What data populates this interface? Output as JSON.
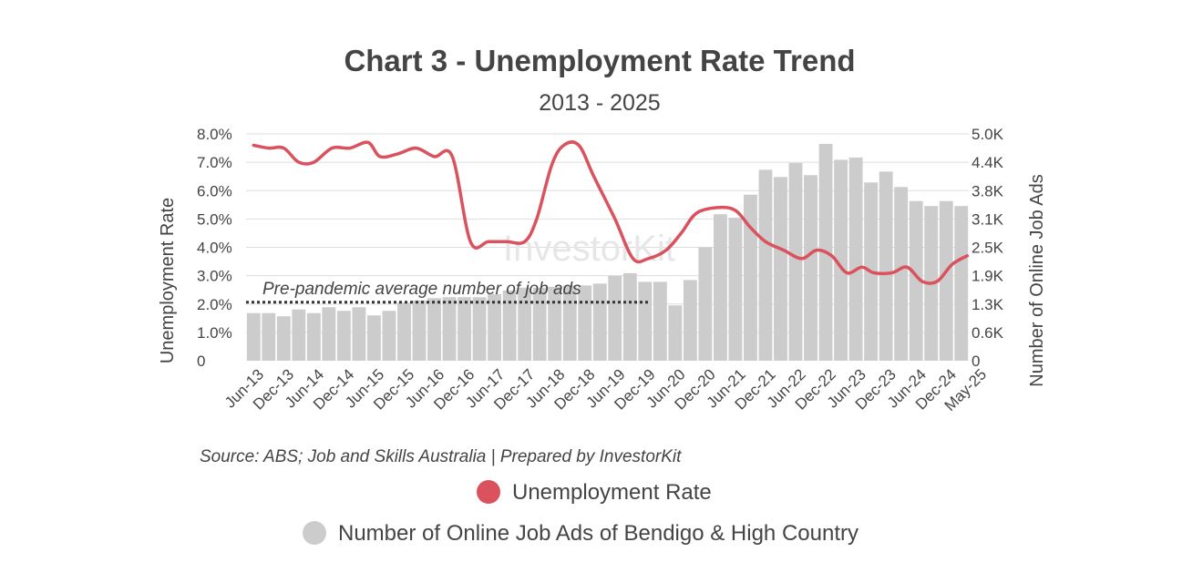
{
  "chart_data": {
    "type": "bar+line",
    "title": "Chart 3 - Unemployment Rate Trend",
    "subtitle": "2013 - 2025",
    "ylabel_left": "Unemployment Rate",
    "ylabel_right": "Number of Online Job Ads",
    "left_ticks": [
      "0",
      "1.0%",
      "2.0%",
      "3.0%",
      "4.0%",
      "5.0%",
      "6.0%",
      "7.0%",
      "8.0%"
    ],
    "right_ticks": [
      "0",
      "0.6K",
      "1.3K",
      "1.9K",
      "2.5K",
      "3.1K",
      "3.8K",
      "4.4K",
      "5.0K"
    ],
    "ylim_left": [
      0,
      8
    ],
    "ylim_right": [
      0,
      5000
    ],
    "x_tick_labels": [
      "Jun-13",
      "Dec-13",
      "Jun-14",
      "Dec-14",
      "Jun-15",
      "Dec-15",
      "Jun-16",
      "Dec-16",
      "Jun-17",
      "Dec-17",
      "Jun-18",
      "Dec-18",
      "Jun-19",
      "Dec-19",
      "Jun-20",
      "Dec-20",
      "Jun-21",
      "Dec-21",
      "Jun-22",
      "Dec-22",
      "Jun-23",
      "Dec-23",
      "Jun-24",
      "Dec-24",
      "May-25"
    ],
    "series": [
      {
        "name": "Number of Online Job Ads of Bendigo & High Country",
        "kind": "bar",
        "axis": "right",
        "color": "#cccccc",
        "values": [
          1050,
          1050,
          980,
          1130,
          1050,
          1180,
          1100,
          1180,
          1000,
          1100,
          1280,
          1330,
          1380,
          1400,
          1400,
          1400,
          1470,
          1550,
          1610,
          1610,
          1630,
          1660,
          1660,
          1700,
          1870,
          1930,
          1740,
          1740,
          1220,
          1780,
          2500,
          3230,
          3150,
          3660,
          4210,
          4050,
          4360,
          4090,
          4780,
          4430,
          4480,
          3930,
          4170,
          3830,
          3520,
          3410,
          3520,
          3410
        ]
      },
      {
        "name": "Unemployment Rate",
        "kind": "line",
        "axis": "left",
        "color": "#d9525e",
        "points": [
          [
            0,
            7.6
          ],
          [
            0.5,
            7.5
          ],
          [
            1,
            7.5
          ],
          [
            1.5,
            7.0
          ],
          [
            2,
            7.0
          ],
          [
            2.6,
            7.5
          ],
          [
            3.2,
            7.5
          ],
          [
            3.8,
            7.7
          ],
          [
            4.2,
            7.2
          ],
          [
            4.8,
            7.3
          ],
          [
            5.4,
            7.5
          ],
          [
            6,
            7.2
          ],
          [
            6.6,
            7.2
          ],
          [
            7.2,
            4.2
          ],
          [
            7.8,
            4.2
          ],
          [
            8.4,
            4.2
          ],
          [
            9,
            4.2
          ],
          [
            9.4,
            5.0
          ],
          [
            9.9,
            6.9
          ],
          [
            10.3,
            7.6
          ],
          [
            10.8,
            7.6
          ],
          [
            11.3,
            6.5
          ],
          [
            12,
            5.0
          ],
          [
            12.6,
            3.6
          ],
          [
            13.1,
            3.6
          ],
          [
            13.7,
            3.9
          ],
          [
            14.2,
            4.5
          ],
          [
            14.7,
            5.2
          ],
          [
            15.4,
            5.4
          ],
          [
            16.0,
            5.3
          ],
          [
            16.5,
            4.7
          ],
          [
            17.0,
            4.2
          ],
          [
            17.6,
            3.9
          ],
          [
            18.2,
            3.6
          ],
          [
            18.7,
            3.9
          ],
          [
            19.2,
            3.7
          ],
          [
            19.7,
            3.1
          ],
          [
            20.2,
            3.3
          ],
          [
            20.6,
            3.1
          ],
          [
            21.2,
            3.1
          ],
          [
            21.7,
            3.3
          ],
          [
            22.2,
            2.8
          ],
          [
            22.7,
            2.8
          ],
          [
            23.2,
            3.4
          ],
          [
            23.7,
            3.7
          ]
        ]
      }
    ],
    "annotation": "Pre-pandemic average number of job ads",
    "annotation_value": 1330,
    "watermark": "InvestorKit",
    "source": "Source: ABS; Job and Skills Australia | Prepared by InvestorKit",
    "legend": [
      {
        "label": "Unemployment Rate",
        "color": "#d9525e"
      },
      {
        "label": "Number of Online Job Ads of Bendigo & High Country",
        "color": "#cccccc"
      }
    ]
  }
}
